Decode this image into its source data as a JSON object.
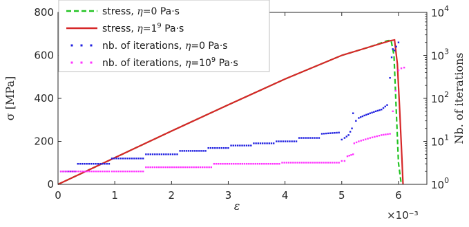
{
  "chart_data": {
    "type": "line",
    "xlabel": "ε",
    "x_multiplier_label": "×10⁻³",
    "xlim": [
      0,
      6.5
    ],
    "x_ticks": [
      "0",
      "1",
      "2",
      "3",
      "4",
      "5",
      "6"
    ],
    "y_left": {
      "label": "σ [MPa]",
      "lim": [
        0,
        800
      ],
      "ticks": [
        "0",
        "200",
        "400",
        "600",
        "800"
      ]
    },
    "y_right": {
      "label": "Nb. of iterations",
      "scale": "log",
      "lim": [
        1,
        10000
      ],
      "ticks": [
        {
          "base": "10",
          "exp": "0"
        },
        {
          "base": "10",
          "exp": "1"
        },
        {
          "base": "10",
          "exp": "2"
        },
        {
          "base": "10",
          "exp": "3"
        },
        {
          "base": "10",
          "exp": "4"
        }
      ]
    },
    "legend_position": "top-left",
    "series": [
      {
        "name": "stress, η=0 Pa·s",
        "legend_parts": [
          "stress, ",
          "η",
          "=0 Pa·s"
        ],
        "axis": "left",
        "style": "dashed",
        "color": "#22c322",
        "x": [
          0,
          1,
          2,
          3,
          4,
          5,
          5.5,
          5.8,
          5.87,
          5.92,
          5.96,
          6.0,
          6.05
        ],
        "y": [
          0,
          124,
          248,
          370,
          490,
          600,
          640,
          668,
          670,
          600,
          350,
          100,
          0
        ]
      },
      {
        "name": "stress, η=1⁹ Pa·s",
        "legend_parts": [
          "stress, ",
          "η",
          "=1",
          "9",
          " Pa·s"
        ],
        "axis": "left",
        "style": "solid",
        "color": "#d62728",
        "x": [
          0,
          1,
          2,
          3,
          4,
          5,
          5.5,
          5.85,
          5.93,
          5.98,
          6.02,
          6.06,
          6.08
        ],
        "y": [
          0,
          124,
          248,
          370,
          490,
          600,
          640,
          668,
          672,
          560,
          350,
          120,
          0
        ]
      },
      {
        "name": "nb. of iterations, η=0 Pa·s",
        "legend_parts": [
          "nb. of iterations, ",
          "η",
          "=0 Pa·s"
        ],
        "axis": "right",
        "style": "markers",
        "color": "#1f1fe0",
        "x": [
          0.05,
          0.3,
          0.35,
          0.9,
          0.95,
          1.5,
          1.55,
          2.1,
          2.15,
          2.6,
          2.65,
          3.0,
          3.05,
          3.4,
          3.45,
          3.8,
          3.85,
          4.2,
          4.25,
          4.6,
          4.65,
          4.95,
          5.0,
          5.05,
          5.12,
          5.18,
          5.2,
          5.25,
          5.3,
          5.4,
          5.5,
          5.6,
          5.7,
          5.8,
          5.85,
          5.88,
          5.9,
          5.93,
          5.96,
          6.0
        ],
        "y": [
          2,
          2,
          3,
          3,
          4,
          4,
          5,
          5,
          6,
          6,
          7,
          7,
          8,
          8,
          9,
          9,
          10,
          10,
          12,
          12,
          15,
          16,
          11,
          12,
          14,
          20,
          45,
          30,
          35,
          40,
          45,
          50,
          55,
          70,
          300,
          900,
          1400,
          1300,
          1600,
          2000
        ]
      },
      {
        "name": "nb. of iterations, η=10⁹ Pa·s",
        "legend_parts": [
          "nb. of iterations, ",
          "η",
          "=10",
          "9",
          " Pa·s"
        ],
        "axis": "right",
        "style": "markers",
        "color": "#ff33ff",
        "x": [
          0.05,
          0.9,
          0.95,
          1.5,
          1.55,
          2.7,
          2.75,
          3.9,
          3.95,
          4.95,
          5.0,
          5.05,
          5.1,
          5.2,
          5.22,
          5.3,
          5.5,
          5.7,
          5.85,
          5.9,
          5.95,
          6.0,
          6.05,
          6.1
        ],
        "y": [
          2,
          2,
          2,
          2,
          2.5,
          2.5,
          3,
          3,
          3.2,
          3.2,
          3.5,
          3.5,
          4.5,
          5,
          9,
          10,
          12,
          14,
          15,
          50,
          150,
          450,
          500,
          520
        ]
      }
    ]
  }
}
